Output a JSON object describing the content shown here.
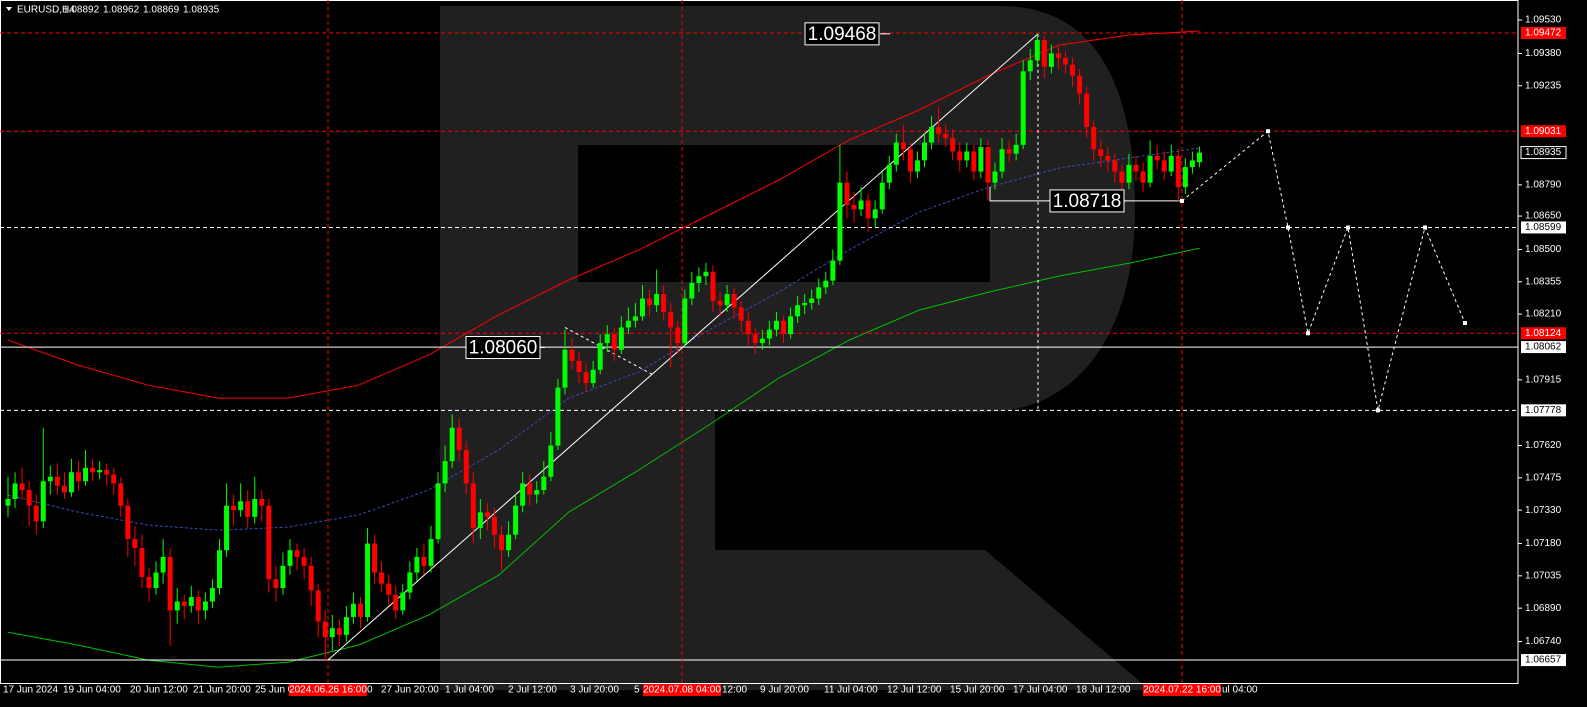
{
  "chart_data": {
    "type": "candlestick",
    "title": "EURUSD,H4",
    "bull_color": "#00ff00",
    "bear_color": "#ff0000",
    "ylim": [
      1.06554,
      1.0962
    ],
    "yticks": [
      {
        "value": 1.0953,
        "label": "1.09530"
      },
      {
        "value": 1.0938,
        "label": "1.09380"
      },
      1.09235,
      {
        "value": 1.0879,
        "label": "1.08790"
      },
      {
        "value": 1.0865,
        "label": "1.08650"
      },
      {
        "value": 1.085,
        "label": "1.08500"
      },
      1.08355,
      {
        "value": 1.0821,
        "label": "1.08210"
      },
      1.07915,
      {
        "value": 1.0762,
        "label": "1.07620"
      },
      1.07475,
      {
        "value": 1.0733,
        "label": "1.07330"
      },
      {
        "value": 1.0718,
        "label": "1.07180"
      },
      1.07035,
      {
        "value": 1.0689,
        "label": "1.06890"
      },
      {
        "value": 1.0674,
        "label": "1.06740"
      }
    ],
    "levels": [
      {
        "value": 1.09472,
        "color": "#ff0000",
        "style": "dashed"
      },
      {
        "value": 1.09031,
        "color": "#ff0000",
        "style": "dashed"
      },
      {
        "value": 1.08935,
        "color": "#ffffff",
        "style": "none"
      },
      {
        "value": 1.08599,
        "color": "#ffffff",
        "style": "dashed"
      },
      {
        "value": 1.08124,
        "color": "#ff0000",
        "style": "dashed"
      },
      {
        "value": 1.08062,
        "color": "#ffffff",
        "style": "solid"
      },
      {
        "value": 1.07778,
        "color": "#ffffff",
        "style": "dashed"
      },
      {
        "value": 1.06657,
        "color": "#ffffff",
        "style": "solid"
      }
    ],
    "x_labels": [
      "17 Jun 2024",
      "19 Jun 04:00",
      "20 Jun 12:00",
      "21 Jun 20:00",
      "25 Jun 04:00",
      "0",
      "27 Jun 20:00",
      "1 Jul 04:00",
      "2 Jul 12:00",
      "3 Jul 20:00",
      "5",
      "12:00",
      "9 Jul 20:00",
      "11 Jul 04:00",
      "12 Jul 12:00",
      "15 Jul 20:00",
      "17 Jul 04:00",
      "18 Jul 12:00",
      "ul 04:00"
    ],
    "time_markers": [
      "2024.06.26 16:00",
      "2024.07.08 04:00",
      "2024.07.22 16:00"
    ],
    "annotations": [
      1.09468,
      1.08718,
      {
        "value": 1.0806,
        "label": "1.08060"
      }
    ],
    "trendline": [
      1.06657,
      1.09468
    ],
    "swing_line": [
      1.0815,
      1.0794
    ],
    "forecast": [
      1.08718,
      1.09031,
      1.08599,
      1.08124,
      1.08599,
      1.07778,
      1.08599,
      1.0817
    ],
    "indicators": [
      {
        "color": "#ff0000",
        "style": "solid",
        "values": [
          1.08093,
          1.07981,
          1.07891,
          1.07833,
          1.07833,
          1.07891,
          1.08026,
          1.08206,
          1.08363,
          1.08498,
          1.08655,
          1.08812,
          1.08991,
          1.09126,
          1.09283,
          1.09418,
          1.09463,
          1.09481
        ]
      },
      {
        "color": "#3c4ab4",
        "style": "dashed",
        "values": [
          1.07397,
          1.07321,
          1.07263,
          1.0724,
          1.07254,
          1.07308,
          1.0742,
          1.076,
          1.07833,
          1.0795,
          1.08138,
          1.08309,
          1.08498,
          1.08668,
          1.0878,
          1.08866,
          1.08911,
          1.08955
        ]
      },
      {
        "color": "#00c000",
        "style": "solid",
        "values": [
          1.06782,
          1.06724,
          1.06657,
          1.06625,
          1.06648,
          1.06724,
          1.06859,
          1.07038,
          1.07321,
          1.0751,
          1.07712,
          1.07923,
          1.08093,
          1.08228,
          1.08309,
          1.08381,
          1.08439,
          1.08506
        ]
      }
    ],
    "candles": [
      [
        1.0735,
        1.0748,
        1.073,
        1.0738
      ],
      [
        1.0738,
        1.075,
        1.0734,
        1.0745
      ],
      [
        1.0745,
        1.0752,
        1.0738,
        1.0742
      ],
      [
        1.0742,
        1.0746,
        1.0726,
        1.0735
      ],
      [
        1.0735,
        1.074,
        1.0722,
        1.0728
      ],
      [
        1.0728,
        1.077,
        1.0725,
        1.0746
      ],
      [
        1.0746,
        1.0753,
        1.074,
        1.0748
      ],
      [
        1.0748,
        1.0754,
        1.074,
        1.0744
      ],
      [
        1.0744,
        1.075,
        1.0738,
        1.0741
      ],
      [
        1.0741,
        1.0756,
        1.0739,
        1.075
      ],
      [
        1.075,
        1.0755,
        1.0742,
        1.0746
      ],
      [
        1.0746,
        1.076,
        1.0744,
        1.0752
      ],
      [
        1.0752,
        1.0756,
        1.0746,
        1.075
      ],
      [
        1.075,
        1.0755,
        1.0747,
        1.0751
      ],
      [
        1.0751,
        1.0754,
        1.0744,
        1.0749
      ],
      [
        1.0749,
        1.0752,
        1.074,
        1.0745
      ],
      [
        1.0745,
        1.0748,
        1.073,
        1.0735
      ],
      [
        1.0735,
        1.0738,
        1.0712,
        1.072
      ],
      [
        1.072,
        1.0726,
        1.0708,
        1.0716
      ],
      [
        1.0716,
        1.0722,
        1.0698,
        1.0703
      ],
      [
        1.0703,
        1.0707,
        1.0692,
        1.0698
      ],
      [
        1.0698,
        1.071,
        1.0695,
        1.0705
      ],
      [
        1.0705,
        1.072,
        1.07,
        1.0712
      ],
      [
        1.0712,
        1.0716,
        1.0672,
        1.0688
      ],
      [
        1.0688,
        1.0698,
        1.0682,
        1.0692
      ],
      [
        1.0692,
        1.0695,
        1.0684,
        1.069
      ],
      [
        1.069,
        1.0699,
        1.0687,
        1.0694
      ],
      [
        1.0694,
        1.0697,
        1.0682,
        1.0688
      ],
      [
        1.0688,
        1.0696,
        1.0684,
        1.0692
      ],
      [
        1.0692,
        1.0702,
        1.0689,
        1.0698
      ],
      [
        1.0698,
        1.072,
        1.0695,
        1.0715
      ],
      [
        1.0715,
        1.0745,
        1.0712,
        1.0735
      ],
      [
        1.0735,
        1.074,
        1.0726,
        1.0733
      ],
      [
        1.0733,
        1.0745,
        1.073,
        1.0737
      ],
      [
        1.0737,
        1.0742,
        1.0725,
        1.073
      ],
      [
        1.073,
        1.0748,
        1.0727,
        1.0738
      ],
      [
        1.0738,
        1.0742,
        1.0728,
        1.0735
      ],
      [
        1.0735,
        1.0738,
        1.0696,
        1.0702
      ],
      [
        1.0702,
        1.0708,
        1.0692,
        1.0698
      ],
      [
        1.0698,
        1.0714,
        1.0695,
        1.0708
      ],
      [
        1.0708,
        1.072,
        1.0704,
        1.0715
      ],
      [
        1.0715,
        1.0718,
        1.0706,
        1.0712
      ],
      [
        1.0712,
        1.0716,
        1.0702,
        1.0708
      ],
      [
        1.0708,
        1.0712,
        1.069,
        1.0697
      ],
      [
        1.0697,
        1.07,
        1.0676,
        1.0683
      ],
      [
        1.0683,
        1.0688,
        1.06657,
        1.0676
      ],
      [
        1.0676,
        1.0686,
        1.067,
        1.068
      ],
      [
        1.068,
        1.0684,
        1.0672,
        1.0677
      ],
      [
        1.0677,
        1.069,
        1.0674,
        1.0685
      ],
      [
        1.0685,
        1.0696,
        1.0682,
        1.0691
      ],
      [
        1.0691,
        1.0694,
        1.068,
        1.0685
      ],
      [
        1.0685,
        1.0725,
        1.0683,
        1.0718
      ],
      [
        1.0718,
        1.0722,
        1.07,
        1.0705
      ],
      [
        1.0705,
        1.071,
        1.0696,
        1.07
      ],
      [
        1.07,
        1.0704,
        1.069,
        1.0695
      ],
      [
        1.0695,
        1.0699,
        1.0684,
        1.0688
      ],
      [
        1.0688,
        1.07,
        1.0686,
        1.0696
      ],
      [
        1.0696,
        1.071,
        1.0693,
        1.0705
      ],
      [
        1.0705,
        1.0716,
        1.0701,
        1.0712
      ],
      [
        1.0712,
        1.0718,
        1.0704,
        1.0708
      ],
      [
        1.0708,
        1.0726,
        1.0705,
        1.072
      ],
      [
        1.072,
        1.075,
        1.0718,
        1.0745
      ],
      [
        1.0745,
        1.0762,
        1.0741,
        1.0755
      ],
      [
        1.0755,
        1.0776,
        1.0752,
        1.077
      ],
      [
        1.077,
        1.0774,
        1.0755,
        1.076
      ],
      [
        1.076,
        1.0764,
        1.074,
        1.0745
      ],
      [
        1.0745,
        1.075,
        1.0718,
        1.0725
      ],
      [
        1.0725,
        1.0738,
        1.072,
        1.0732
      ],
      [
        1.0732,
        1.0736,
        1.0724,
        1.073
      ],
      [
        1.073,
        1.0734,
        1.0716,
        1.0722
      ],
      [
        1.0722,
        1.0726,
        1.0706,
        1.0715
      ],
      [
        1.0715,
        1.0728,
        1.0712,
        1.0722
      ],
      [
        1.0722,
        1.074,
        1.072,
        1.0735
      ],
      [
        1.0735,
        1.075,
        1.0732,
        1.0745
      ],
      [
        1.0745,
        1.0749,
        1.0735,
        1.074
      ],
      [
        1.074,
        1.0746,
        1.0736,
        1.0742
      ],
      [
        1.0742,
        1.0755,
        1.074,
        1.0748
      ],
      [
        1.0748,
        1.0768,
        1.0746,
        1.0762
      ],
      [
        1.0762,
        1.0792,
        1.076,
        1.0788
      ],
      [
        1.0788,
        1.0814,
        1.0785,
        1.0805
      ],
      [
        1.0805,
        1.081,
        1.0796,
        1.08
      ],
      [
        1.08,
        1.0804,
        1.079,
        1.0795
      ],
      [
        1.0795,
        1.0799,
        1.0786,
        1.079
      ],
      [
        1.079,
        1.08,
        1.0788,
        1.0796
      ],
      [
        1.0796,
        1.0812,
        1.0794,
        1.0808
      ],
      [
        1.0808,
        1.0816,
        1.0804,
        1.0812
      ],
      [
        1.0812,
        1.0815,
        1.08,
        1.0805
      ],
      [
        1.0805,
        1.082,
        1.0803,
        1.0815
      ],
      [
        1.0815,
        1.0824,
        1.0812,
        1.0818
      ],
      [
        1.0818,
        1.0826,
        1.0815,
        1.082
      ],
      [
        1.082,
        1.0834,
        1.0818,
        1.0828
      ],
      [
        1.0828,
        1.0832,
        1.082,
        1.0825
      ],
      [
        1.0825,
        1.0841,
        1.0822,
        1.083
      ],
      [
        1.083,
        1.0834,
        1.0818,
        1.0822
      ],
      [
        1.0822,
        1.0826,
        1.0797,
        1.0815
      ],
      [
        1.0815,
        1.0818,
        1.0803,
        1.0808
      ],
      [
        1.0808,
        1.0832,
        1.0806,
        1.0828
      ],
      [
        1.0828,
        1.084,
        1.0825,
        1.0835
      ],
      [
        1.0835,
        1.0842,
        1.0831,
        1.0838
      ],
      [
        1.0838,
        1.0844,
        1.0834,
        1.084
      ],
      [
        1.084,
        1.0843,
        1.0822,
        1.0827
      ],
      [
        1.0827,
        1.0831,
        1.082,
        1.0825
      ],
      [
        1.0825,
        1.0834,
        1.0822,
        1.083
      ],
      [
        1.083,
        1.0833,
        1.0819,
        1.0824
      ],
      [
        1.0824,
        1.0827,
        1.0813,
        1.0818
      ],
      [
        1.0818,
        1.0822,
        1.0807,
        1.0812
      ],
      [
        1.0812,
        1.0815,
        1.0803,
        1.0808
      ],
      [
        1.0808,
        1.0814,
        1.0805,
        1.081
      ],
      [
        1.081,
        1.0818,
        1.0807,
        1.0814
      ],
      [
        1.0814,
        1.0822,
        1.0811,
        1.0818
      ],
      [
        1.0818,
        1.082,
        1.0808,
        1.0812
      ],
      [
        1.0812,
        1.0824,
        1.081,
        1.082
      ],
      [
        1.082,
        1.0829,
        1.0817,
        1.0825
      ],
      [
        1.0825,
        1.083,
        1.0821,
        1.0826
      ],
      [
        1.0826,
        1.0832,
        1.0823,
        1.0828
      ],
      [
        1.0828,
        1.0837,
        1.0825,
        1.0833
      ],
      [
        1.0833,
        1.084,
        1.083,
        1.0836
      ],
      [
        1.0836,
        1.085,
        1.0834,
        1.0845
      ],
      [
        1.0845,
        1.0897,
        1.0843,
        1.088
      ],
      [
        1.088,
        1.0885,
        1.0864,
        1.087
      ],
      [
        1.087,
        1.0876,
        1.0862,
        1.0868
      ],
      [
        1.0868,
        1.0878,
        1.0865,
        1.0872
      ],
      [
        1.0872,
        1.0875,
        1.0858,
        1.0864
      ],
      [
        1.0864,
        1.0872,
        1.086,
        1.0868
      ],
      [
        1.0868,
        1.0885,
        1.0866,
        1.088
      ],
      [
        1.088,
        1.0892,
        1.0877,
        1.0888
      ],
      [
        1.0888,
        1.0902,
        1.0885,
        1.0898
      ],
      [
        1.0898,
        1.0906,
        1.089,
        1.0895
      ],
      [
        1.0895,
        1.0898,
        1.088,
        1.0885
      ],
      [
        1.0885,
        1.0894,
        1.0882,
        1.089
      ],
      [
        1.089,
        1.0902,
        1.0887,
        1.0898
      ],
      [
        1.0898,
        1.091,
        1.0895,
        1.0905
      ],
      [
        1.0905,
        1.0914,
        1.0898,
        1.0902
      ],
      [
        1.0902,
        1.0906,
        1.0896,
        1.09
      ],
      [
        1.09,
        1.0904,
        1.089,
        1.0894
      ],
      [
        1.0894,
        1.0898,
        1.0885,
        1.089
      ],
      [
        1.089,
        1.0898,
        1.0887,
        1.0894
      ],
      [
        1.0894,
        1.0897,
        1.0881,
        1.0885
      ],
      [
        1.0885,
        1.09,
        1.0882,
        1.0896
      ],
      [
        1.0896,
        1.0899,
        1.0872,
        1.088
      ],
      [
        1.088,
        1.0889,
        1.0877,
        1.0885
      ],
      [
        1.0885,
        1.09,
        1.0882,
        1.0895
      ],
      [
        1.0895,
        1.0899,
        1.0889,
        1.0893
      ],
      [
        1.0893,
        1.0902,
        1.089,
        1.0897
      ],
      [
        1.0897,
        1.0935,
        1.0895,
        1.093
      ],
      [
        1.093,
        1.094,
        1.0926,
        1.0935
      ],
      [
        1.0935,
        1.09468,
        1.0932,
        1.0944
      ],
      [
        1.0944,
        1.0946,
        1.0927,
        1.0932
      ],
      [
        1.0932,
        1.0942,
        1.0929,
        1.0938
      ],
      [
        1.0938,
        1.0941,
        1.0931,
        1.0936
      ],
      [
        1.0936,
        1.0939,
        1.0929,
        1.0933
      ],
      [
        1.0933,
        1.0936,
        1.0923,
        1.0928
      ],
      [
        1.0928,
        1.0931,
        1.0915,
        1.092
      ],
      [
        1.092,
        1.0923,
        1.09,
        1.0905
      ],
      [
        1.0905,
        1.0908,
        1.089,
        1.0895
      ],
      [
        1.0895,
        1.0899,
        1.0887,
        1.0892
      ],
      [
        1.0892,
        1.0896,
        1.0885,
        1.089
      ],
      [
        1.089,
        1.0893,
        1.088,
        1.0885
      ],
      [
        1.0885,
        1.0888,
        1.0874,
        1.088
      ],
      [
        1.088,
        1.0893,
        1.0877,
        1.0888
      ],
      [
        1.0888,
        1.0892,
        1.0881,
        1.0885
      ],
      [
        1.0885,
        1.0889,
        1.0876,
        1.088
      ],
      [
        1.088,
        1.0899,
        1.0878,
        1.0892
      ],
      [
        1.0892,
        1.0897,
        1.0886,
        1.089
      ],
      [
        1.089,
        1.0894,
        1.0881,
        1.0885
      ],
      [
        1.0885,
        1.0897,
        1.0883,
        1.0892
      ],
      [
        1.0892,
        1.0895,
        1.08718,
        1.0878
      ],
      [
        1.0878,
        1.0891,
        1.0875,
        1.0887
      ],
      [
        1.0887,
        1.0894,
        1.0884,
        1.089
      ],
      [
        1.08892,
        1.08962,
        1.08869,
        1.08935
      ]
    ]
  }
}
